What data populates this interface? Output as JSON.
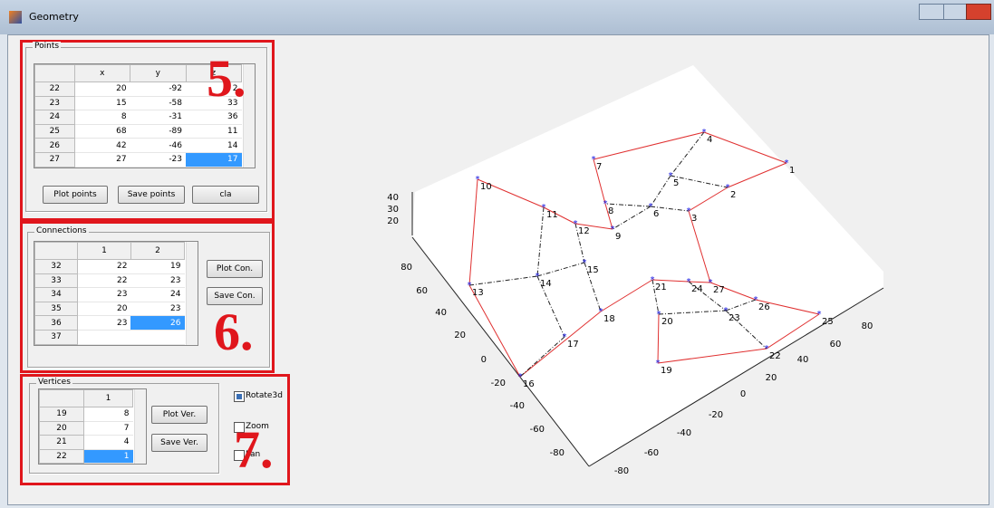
{
  "window": {
    "title": "Geometry"
  },
  "points": {
    "title": "Points",
    "columns": [
      "x",
      "y",
      "z"
    ],
    "rows": [
      [
        "22",
        "20",
        "-92",
        "2"
      ],
      [
        "23",
        "15",
        "-58",
        "33"
      ],
      [
        "24",
        "8",
        "-31",
        "36"
      ],
      [
        "25",
        "68",
        "-89",
        "11"
      ],
      [
        "26",
        "42",
        "-46",
        "14"
      ],
      [
        "27",
        "27",
        "-23",
        "17"
      ]
    ],
    "buttons": [
      "Plot points",
      "Save points",
      "cla"
    ],
    "annotation": "5."
  },
  "connections": {
    "title": "Connections",
    "columns": [
      "1",
      "2"
    ],
    "rows": [
      [
        "32",
        "22",
        "19"
      ],
      [
        "33",
        "22",
        "23"
      ],
      [
        "34",
        "23",
        "24"
      ],
      [
        "35",
        "20",
        "23"
      ],
      [
        "36",
        "23",
        "26"
      ],
      [
        "37"
      ]
    ],
    "buttons": [
      "Plot Con.",
      "Save Con."
    ],
    "annotation": "6."
  },
  "vertices": {
    "title": "Vertices",
    "columns": [
      "1"
    ],
    "rows": [
      [
        "19",
        "8"
      ],
      [
        "20",
        "7"
      ],
      [
        "21",
        "4"
      ],
      [
        "22",
        "1"
      ]
    ],
    "buttons": [
      "Plot Ver.",
      "Save Ver."
    ],
    "checkboxes": [
      {
        "label": "Rotate3d",
        "checked": true
      },
      {
        "label": "Zoom",
        "checked": false
      },
      {
        "label": "Pan",
        "checked": false
      }
    ],
    "annotation": "7."
  },
  "plot": {
    "zticks": [
      "20",
      "30",
      "40"
    ],
    "yticks": [
      "80",
      "60",
      "40",
      "20",
      "0",
      "-20",
      "-40",
      "-60",
      "-80"
    ],
    "xticks": [
      "-80",
      "-60",
      "-40",
      "-20",
      "0",
      "20",
      "40",
      "60",
      "80"
    ],
    "nodes": [
      "1",
      "2",
      "3",
      "4",
      "5",
      "6",
      "7",
      "8",
      "9",
      "10",
      "11",
      "12",
      "13",
      "14",
      "15",
      "16",
      "17",
      "18",
      "19",
      "20",
      "21",
      "22",
      "23",
      "24",
      "25",
      "26",
      "27"
    ]
  }
}
